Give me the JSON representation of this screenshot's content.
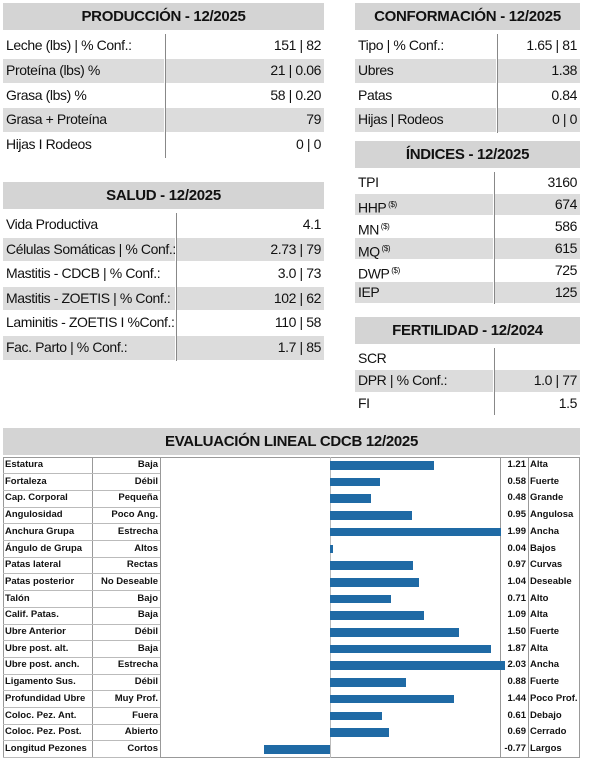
{
  "produccion": {
    "title": "PRODUCCIÓN - 12/2025",
    "rows": [
      {
        "label": "Leche (lbs) | % Conf.:",
        "value": "151 | 82"
      },
      {
        "label": "Proteína (lbs) %",
        "value": "21 | 0.06"
      },
      {
        "label": "Grasa (lbs) %",
        "value": "58 | 0.20"
      },
      {
        "label": "Grasa + Proteína",
        "value": "79"
      },
      {
        "label": "Hijas I Rodeos",
        "value": "0 | 0"
      }
    ]
  },
  "conformacion": {
    "title": "CONFORMACIÓN - 12/2025",
    "rows": [
      {
        "label": "Tipo | % Conf.:",
        "value": "1.65 | 81"
      },
      {
        "label": "Ubres",
        "value": "1.38"
      },
      {
        "label": "Patas",
        "value": "0.84"
      },
      {
        "label": "Hijas | Rodeos",
        "value": "0 | 0"
      }
    ]
  },
  "indices": {
    "title": "ÍNDICES - 12/2025",
    "rows": [
      {
        "label": "TPI",
        "value": "3160"
      },
      {
        "label": "HHP",
        "sup": "($)",
        "value": "674"
      },
      {
        "label": "MN",
        "sup": "($)",
        "value": "586"
      },
      {
        "label": "MQ",
        "sup": "($)",
        "value": "615"
      },
      {
        "label": "DWP",
        "sup": "($)",
        "value": "725"
      },
      {
        "label": "IEP",
        "value": "125"
      }
    ]
  },
  "fertilidad": {
    "title": "FERTILIDAD - 12/2024",
    "rows": [
      {
        "label": "SCR",
        "value": ""
      },
      {
        "label": "DPR | % Conf.:",
        "value": "1.0 | 77"
      },
      {
        "label": "FI",
        "value": "1.5"
      }
    ]
  },
  "salud": {
    "title": "SALUD - 12/2025",
    "rows": [
      {
        "label": "Vida Productiva",
        "value": "4.1"
      },
      {
        "label": "Células Somáticas | % Conf.:",
        "value": "2.73 | 79"
      },
      {
        "label": "Mastitis - CDCB | % Conf.:",
        "value": "3.0 | 73"
      },
      {
        "label": "Mastitis - ZOETIS | % Conf.:",
        "value": "102 | 62"
      },
      {
        "label": "Laminitis - ZOETIS I %Conf.:",
        "value": "110 | 58"
      },
      {
        "label": "Fac. Parto | % Conf.:",
        "value": "1.7 | 85"
      }
    ]
  },
  "lineal": {
    "title": "EVALUACIÓN LINEAL CDCB 12/2025",
    "color": "#1f6aa5",
    "rows": [
      {
        "trait": "Estatura",
        "low": "Baja",
        "value": 1.21,
        "label": "1.21",
        "high": "Alta"
      },
      {
        "trait": "Fortaleza",
        "low": "Débil",
        "value": 0.58,
        "label": "0.58",
        "high": "Fuerte"
      },
      {
        "trait": "Cap. Corporal",
        "low": "Pequeña",
        "value": 0.48,
        "label": "0.48",
        "high": "Grande"
      },
      {
        "trait": "Angulosidad",
        "low": "Poco Ang.",
        "value": 0.95,
        "label": "0.95",
        "high": "Angulosa"
      },
      {
        "trait": "Anchura Grupa",
        "low": "Estrecha",
        "value": 1.99,
        "label": "1.99",
        "high": "Ancha"
      },
      {
        "trait": "Ángulo de Grupa",
        "low": "Altos",
        "value": 0.04,
        "label": "0.04",
        "high": "Bajos"
      },
      {
        "trait": "Patas lateral",
        "low": "Rectas",
        "value": 0.97,
        "label": "0.97",
        "high": "Curvas"
      },
      {
        "trait": "Patas posterior",
        "low": "No Deseable",
        "value": 1.04,
        "label": "1.04",
        "high": "Deseable"
      },
      {
        "trait": "Talón",
        "low": "Bajo",
        "value": 0.71,
        "label": "0.71",
        "high": "Alto"
      },
      {
        "trait": "Calif. Patas.",
        "low": "Baja",
        "value": 1.09,
        "label": "1.09",
        "high": "Alta"
      },
      {
        "trait": "Ubre Anterior",
        "low": "Débil",
        "value": 1.5,
        "label": "1.50",
        "high": "Fuerte"
      },
      {
        "trait": "Ubre post. alt.",
        "low": "Baja",
        "value": 1.87,
        "label": "1.87",
        "high": "Alta"
      },
      {
        "trait": "Ubre post. anch.",
        "low": "Estrecha",
        "value": 2.03,
        "label": "2.03",
        "high": "Ancha"
      },
      {
        "trait": "Ligamento Sus.",
        "low": "Débil",
        "value": 0.88,
        "label": "0.88",
        "high": "Fuerte"
      },
      {
        "trait": "Profundidad Ubre",
        "low": "Muy Prof.",
        "value": 1.44,
        "label": "1.44",
        "high": "Poco Prof."
      },
      {
        "trait": "Coloc. Pez. Ant.",
        "low": "Fuera",
        "value": 0.61,
        "label": "0.61",
        "high": "Debajo"
      },
      {
        "trait": "Coloc. Pez. Post.",
        "low": "Abierto",
        "value": 0.69,
        "label": "0.69",
        "high": "Cerrado"
      },
      {
        "trait": "Longitud Pezones",
        "low": "Cortos",
        "value": -0.77,
        "label": "-0.77",
        "high": "Largos"
      }
    ]
  }
}
